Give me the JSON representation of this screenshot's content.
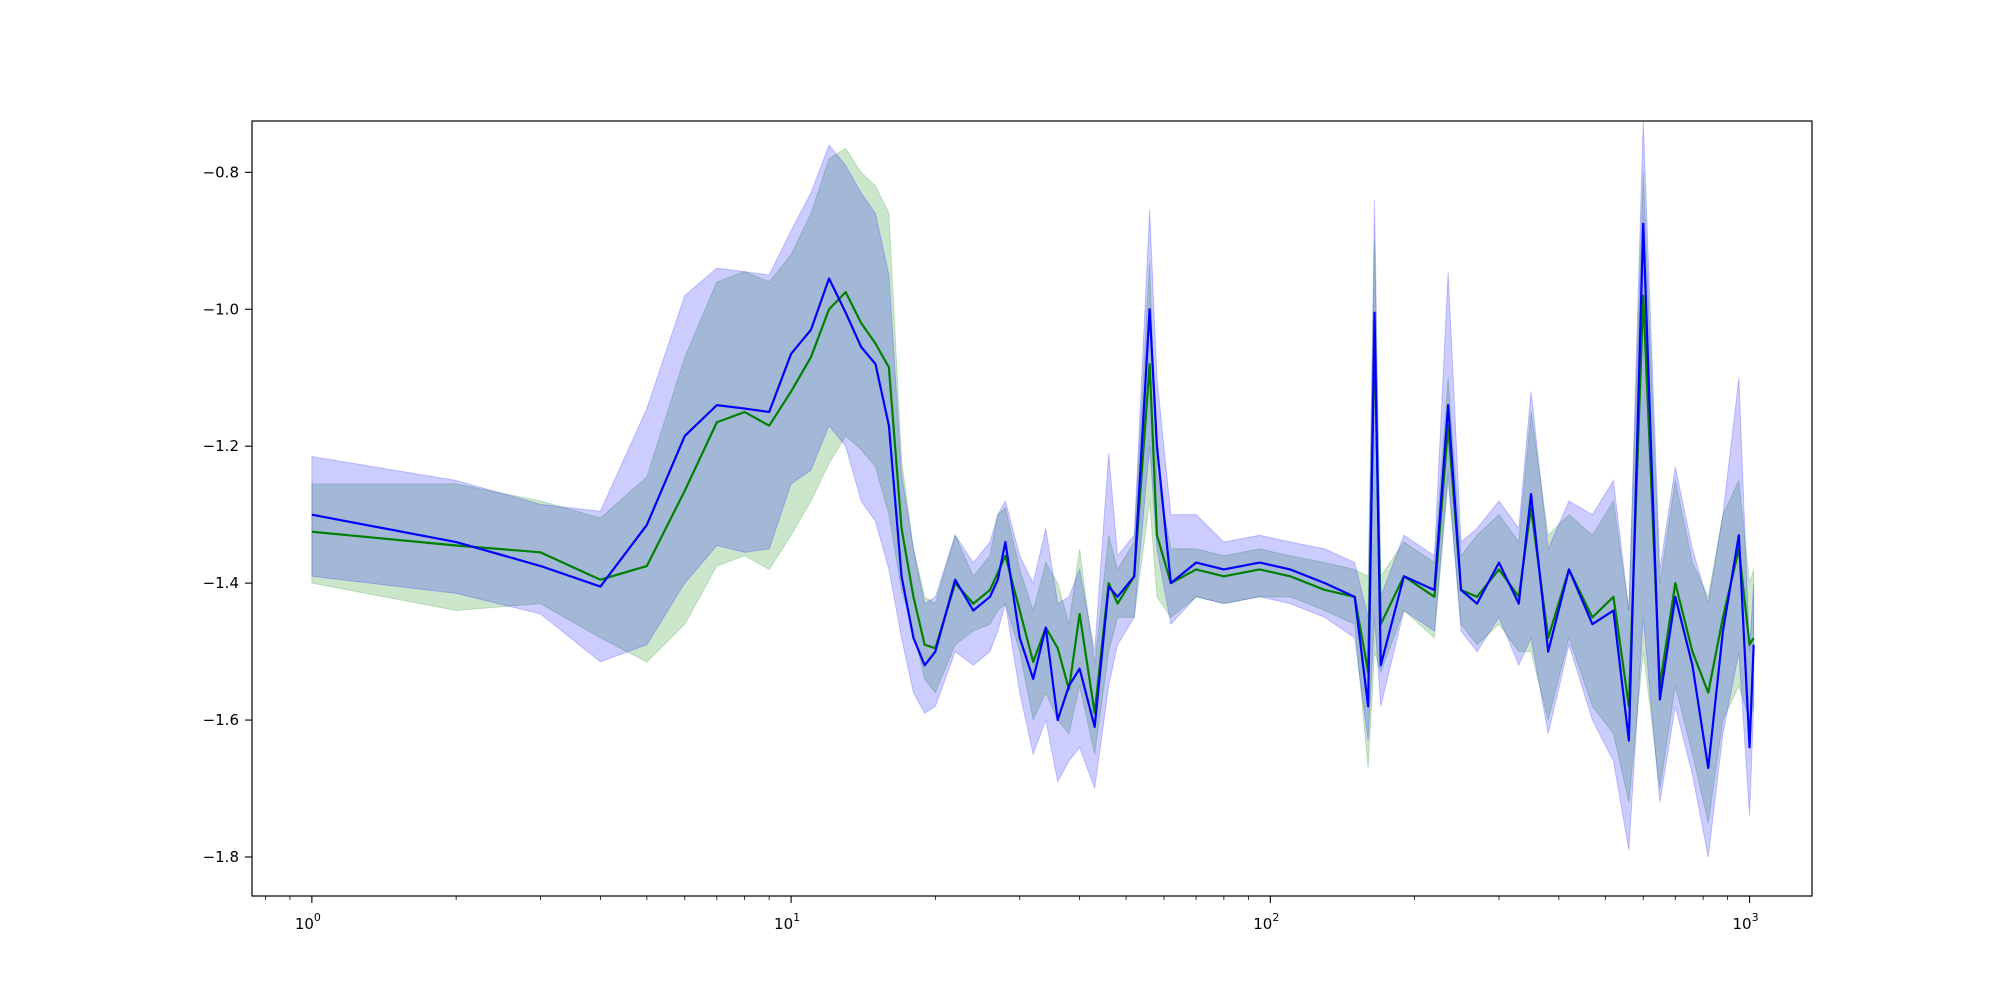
{
  "chart_data": {
    "type": "line",
    "title": "",
    "xlabel": "",
    "ylabel": "",
    "xscale": "log",
    "xlim": [
      0.75,
      1350
    ],
    "ylim": [
      -1.857,
      -0.725
    ],
    "grid": false,
    "legend": "none",
    "x_ticks": [
      {
        "value": 1,
        "base": "10",
        "exp": "0"
      },
      {
        "value": 10,
        "base": "10",
        "exp": "1"
      },
      {
        "value": 100,
        "base": "10",
        "exp": "2"
      },
      {
        "value": 1000,
        "base": "10",
        "exp": "3"
      }
    ],
    "y_ticks": [
      {
        "value": -0.8,
        "label": "−0.8"
      },
      {
        "value": -1.0,
        "label": "−1.0"
      },
      {
        "value": -1.2,
        "label": "−1.2"
      },
      {
        "value": -1.4,
        "label": "−1.4"
      },
      {
        "value": -1.6,
        "label": "−1.6"
      },
      {
        "value": -1.8,
        "label": "−1.8"
      }
    ],
    "series": [
      {
        "color": "#008000",
        "band_color": "#008000",
        "x": [
          1,
          2,
          3,
          4,
          5,
          6,
          7,
          8,
          9,
          10,
          11,
          12,
          13,
          14,
          15,
          16,
          17,
          18,
          19,
          20,
          22,
          24,
          26,
          27,
          28,
          30,
          32,
          34,
          36,
          38,
          40,
          43,
          46,
          48,
          52,
          56,
          58,
          62,
          70,
          80,
          95,
          110,
          130,
          150,
          160,
          165,
          170,
          190,
          220,
          235,
          250,
          270,
          300,
          330,
          350,
          380,
          420,
          470,
          520,
          560,
          600,
          650,
          700,
          760,
          820,
          880,
          950,
          1000,
          1020
        ],
        "y": [
          -1.325,
          -1.345,
          -1.355,
          -1.395,
          -1.375,
          -1.265,
          -1.165,
          -1.15,
          -1.17,
          -1.12,
          -1.07,
          -1.0,
          -0.975,
          -1.02,
          -1.05,
          -1.085,
          -1.32,
          -1.42,
          -1.49,
          -1.495,
          -1.4,
          -1.43,
          -1.41,
          -1.385,
          -1.36,
          -1.44,
          -1.515,
          -1.465,
          -1.495,
          -1.555,
          -1.445,
          -1.59,
          -1.4,
          -1.43,
          -1.39,
          -1.08,
          -1.33,
          -1.4,
          -1.38,
          -1.39,
          -1.38,
          -1.39,
          -1.41,
          -1.42,
          -1.53,
          -1.045,
          -1.46,
          -1.39,
          -1.42,
          -1.17,
          -1.41,
          -1.42,
          -1.38,
          -1.42,
          -1.29,
          -1.48,
          -1.38,
          -1.45,
          -1.42,
          -1.58,
          -0.98,
          -1.55,
          -1.4,
          -1.5,
          -1.56,
          -1.45,
          -1.35,
          -1.49,
          -1.48
        ],
        "lower": [
          -1.4,
          -1.44,
          -1.43,
          -1.48,
          -1.515,
          -1.46,
          -1.375,
          -1.36,
          -1.38,
          -1.33,
          -1.28,
          -1.225,
          -1.185,
          -1.205,
          -1.23,
          -1.3,
          -1.41,
          -1.47,
          -1.54,
          -1.56,
          -1.49,
          -1.47,
          -1.46,
          -1.44,
          -1.43,
          -1.5,
          -1.6,
          -1.56,
          -1.6,
          -1.62,
          -1.55,
          -1.65,
          -1.5,
          -1.45,
          -1.45,
          -1.28,
          -1.42,
          -1.45,
          -1.42,
          -1.43,
          -1.42,
          -1.42,
          -1.44,
          -1.46,
          -1.67,
          -1.5,
          -1.53,
          -1.44,
          -1.48,
          -1.25,
          -1.46,
          -1.49,
          -1.46,
          -1.5,
          -1.5,
          -1.6,
          -1.48,
          -1.58,
          -1.62,
          -1.72,
          -1.5,
          -1.7,
          -1.55,
          -1.65,
          -1.75,
          -1.6,
          -1.55,
          -1.6,
          -1.58
        ],
        "upper": [
          -1.255,
          -1.255,
          -1.28,
          -1.305,
          -1.245,
          -1.07,
          -0.96,
          -0.945,
          -0.96,
          -0.92,
          -0.86,
          -0.78,
          -0.765,
          -0.8,
          -0.82,
          -0.86,
          -1.22,
          -1.35,
          -1.42,
          -1.43,
          -1.33,
          -1.39,
          -1.36,
          -1.3,
          -1.29,
          -1.38,
          -1.44,
          -1.37,
          -1.4,
          -1.46,
          -1.35,
          -1.52,
          -1.33,
          -1.38,
          -1.34,
          -0.93,
          -1.24,
          -1.35,
          -1.35,
          -1.36,
          -1.35,
          -1.36,
          -1.37,
          -1.38,
          -1.39,
          -0.9,
          -1.39,
          -1.34,
          -1.37,
          -1.1,
          -1.36,
          -1.33,
          -1.3,
          -1.34,
          -1.15,
          -1.33,
          -1.3,
          -1.33,
          -1.28,
          -1.44,
          -0.8,
          -1.4,
          -1.25,
          -1.37,
          -1.42,
          -1.3,
          -1.25,
          -1.4,
          -1.38
        ]
      },
      {
        "color": "#0000ff",
        "band_color": "#0000ff",
        "x": [
          1,
          2,
          3,
          4,
          5,
          6,
          7,
          8,
          9,
          10,
          11,
          12,
          13,
          14,
          15,
          16,
          17,
          18,
          19,
          20,
          22,
          24,
          26,
          27,
          28,
          30,
          32,
          34,
          36,
          38,
          40,
          43,
          46,
          48,
          52,
          56,
          58,
          62,
          70,
          80,
          95,
          110,
          130,
          150,
          160,
          165,
          170,
          190,
          220,
          235,
          250,
          270,
          300,
          330,
          350,
          380,
          420,
          470,
          520,
          560,
          600,
          650,
          700,
          760,
          820,
          880,
          950,
          1000,
          1020
        ],
        "y": [
          -1.3,
          -1.34,
          -1.375,
          -1.405,
          -1.315,
          -1.185,
          -1.14,
          -1.145,
          -1.15,
          -1.065,
          -1.03,
          -0.955,
          -1.005,
          -1.055,
          -1.08,
          -1.17,
          -1.39,
          -1.48,
          -1.52,
          -1.5,
          -1.395,
          -1.44,
          -1.42,
          -1.395,
          -1.34,
          -1.48,
          -1.54,
          -1.465,
          -1.6,
          -1.55,
          -1.525,
          -1.61,
          -1.405,
          -1.42,
          -1.39,
          -1.0,
          -1.2,
          -1.4,
          -1.37,
          -1.38,
          -1.37,
          -1.38,
          -1.4,
          -1.42,
          -1.58,
          -1.005,
          -1.52,
          -1.39,
          -1.41,
          -1.14,
          -1.41,
          -1.43,
          -1.37,
          -1.43,
          -1.27,
          -1.5,
          -1.38,
          -1.46,
          -1.44,
          -1.63,
          -0.875,
          -1.57,
          -1.42,
          -1.52,
          -1.67,
          -1.47,
          -1.33,
          -1.64,
          -1.49
        ],
        "lower": [
          -1.39,
          -1.415,
          -1.445,
          -1.515,
          -1.49,
          -1.4,
          -1.345,
          -1.355,
          -1.35,
          -1.255,
          -1.235,
          -1.17,
          -1.2,
          -1.28,
          -1.31,
          -1.38,
          -1.48,
          -1.56,
          -1.59,
          -1.58,
          -1.5,
          -1.52,
          -1.5,
          -1.47,
          -1.43,
          -1.56,
          -1.65,
          -1.6,
          -1.69,
          -1.66,
          -1.64,
          -1.7,
          -1.55,
          -1.49,
          -1.45,
          -1.2,
          -1.35,
          -1.46,
          -1.42,
          -1.43,
          -1.42,
          -1.43,
          -1.45,
          -1.48,
          -1.63,
          -1.45,
          -1.58,
          -1.44,
          -1.47,
          -1.24,
          -1.47,
          -1.5,
          -1.45,
          -1.52,
          -1.48,
          -1.62,
          -1.49,
          -1.6,
          -1.66,
          -1.79,
          -1.45,
          -1.72,
          -1.58,
          -1.68,
          -1.8,
          -1.62,
          -1.5,
          -1.74,
          -1.58
        ],
        "upper": [
          -1.215,
          -1.25,
          -1.285,
          -1.295,
          -1.145,
          -0.98,
          -0.94,
          -0.945,
          -0.95,
          -0.885,
          -0.83,
          -0.76,
          -0.79,
          -0.83,
          -0.86,
          -0.95,
          -1.24,
          -1.35,
          -1.43,
          -1.42,
          -1.33,
          -1.37,
          -1.34,
          -1.3,
          -1.28,
          -1.36,
          -1.4,
          -1.32,
          -1.43,
          -1.42,
          -1.38,
          -1.5,
          -1.21,
          -1.36,
          -1.33,
          -0.855,
          -1.1,
          -1.3,
          -1.3,
          -1.34,
          -1.33,
          -1.34,
          -1.35,
          -1.37,
          -1.45,
          -0.84,
          -1.42,
          -1.33,
          -1.36,
          -0.945,
          -1.34,
          -1.32,
          -1.28,
          -1.32,
          -1.12,
          -1.35,
          -1.28,
          -1.3,
          -1.25,
          -1.44,
          -0.725,
          -1.38,
          -1.23,
          -1.35,
          -1.43,
          -1.3,
          -1.1,
          -1.5,
          -1.4
        ]
      }
    ]
  }
}
